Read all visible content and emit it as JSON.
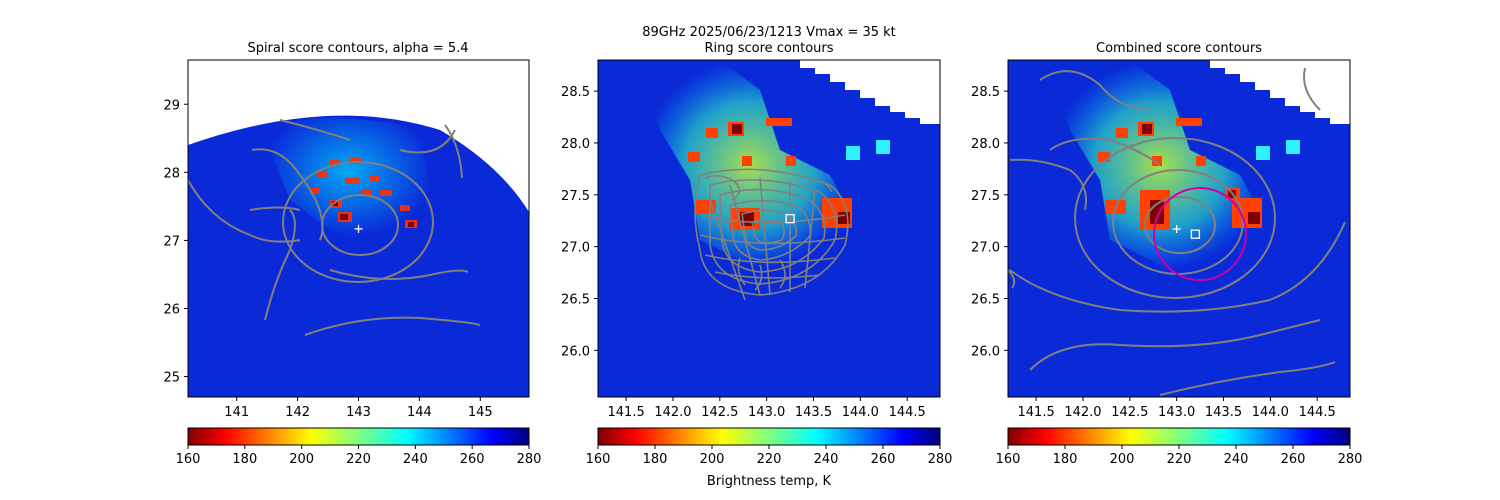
{
  "suptitle": "89GHz  2025/06/23/1213    Vmax = 35 kt",
  "colorbar_label": "Brightness temp, K",
  "colormap": "jet_reversed",
  "colors": {
    "contour": "#808080",
    "ring": "#cc00aa",
    "marker": "#ffffff",
    "sea": "#0a2ad8"
  },
  "chart_data": [
    {
      "type": "heatmap",
      "title": "Spiral score contours, alpha =  5.4",
      "xlim": [
        140.2,
        145.8
      ],
      "ylim": [
        24.7,
        29.65
      ],
      "xticks": [
        141,
        142,
        143,
        144,
        145
      ],
      "yticks": [
        25,
        26,
        27,
        28,
        29
      ],
      "swath_edge": "curved",
      "cross_marker": {
        "x": 143.0,
        "y": 27.17
      },
      "colorbar": {
        "min": 160,
        "max": 280,
        "ticks": [
          160,
          180,
          200,
          220,
          240,
          260,
          280
        ]
      }
    },
    {
      "type": "heatmap",
      "title": "Ring score contours",
      "xlim": [
        141.2,
        144.85
      ],
      "ylim": [
        25.55,
        28.8
      ],
      "xticks": [
        141.5,
        142.0,
        142.5,
        143.0,
        143.5,
        144.0,
        144.5
      ],
      "yticks": [
        26.0,
        26.5,
        27.0,
        27.5,
        28.0,
        28.5
      ],
      "swath_edge": "stepped",
      "square_marker": {
        "x": 143.25,
        "y": 27.27
      },
      "colorbar": {
        "min": 160,
        "max": 280,
        "ticks": [
          160,
          180,
          200,
          220,
          240,
          260,
          280
        ]
      }
    },
    {
      "type": "heatmap",
      "title": "Combined score contours",
      "xlim": [
        141.2,
        144.85
      ],
      "ylim": [
        25.55,
        28.8
      ],
      "xticks": [
        141.5,
        142.0,
        142.5,
        143.0,
        143.5,
        144.0,
        144.5
      ],
      "yticks": [
        26.0,
        26.5,
        27.0,
        27.5,
        28.0,
        28.5
      ],
      "swath_edge": "stepped",
      "cross_marker": {
        "x": 143.0,
        "y": 27.17
      },
      "square_marker": {
        "x": 143.2,
        "y": 27.12
      },
      "ring": {
        "cx": 143.2,
        "cy": 27.12,
        "radius_deg": 0.45
      },
      "colorbar": {
        "min": 160,
        "max": 280,
        "ticks": [
          160,
          180,
          200,
          220,
          240,
          260,
          280
        ]
      }
    }
  ]
}
